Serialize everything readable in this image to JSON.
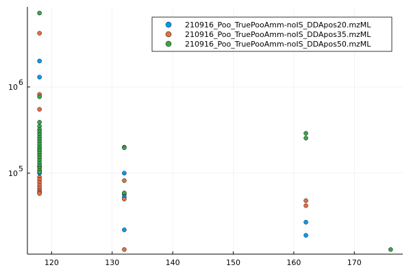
{
  "chart_data": {
    "type": "scatter",
    "title": "",
    "xlabel": "",
    "ylabel": "",
    "xlim": [
      116,
      178
    ],
    "ylim": [
      11500,
      8500000
    ],
    "y_scale": "log10",
    "grid": true,
    "legend_position": "top-right",
    "x_ticks": [
      120,
      130,
      140,
      150,
      160,
      170
    ],
    "x_tick_labels": [
      "120",
      "130",
      "140",
      "150",
      "160",
      "170"
    ],
    "y_ticks": [
      100000,
      1000000
    ],
    "y_tick_labels": [
      {
        "base": "10",
        "exp": "5"
      },
      {
        "base": "10",
        "exp": "6"
      }
    ],
    "series": [
      {
        "name": "210916_Poo_TruePooAmm-noIS_DDApos20.mzML",
        "color": "#009af9",
        "points": [
          [
            118,
            2000000
          ],
          [
            118,
            1300000
          ],
          [
            118,
            120000
          ],
          [
            118,
            100000
          ],
          [
            132,
            100000
          ],
          [
            132,
            57000
          ],
          [
            132,
            53000
          ],
          [
            132,
            22000
          ],
          [
            162,
            27000
          ],
          [
            162,
            19000
          ]
        ]
      },
      {
        "name": "210916_Poo_TruePooAmm-noIS_DDApos35.mzML",
        "color": "#e26f46",
        "points": [
          [
            118,
            4200000
          ],
          [
            118,
            820000
          ],
          [
            118,
            550000
          ],
          [
            118,
            90000
          ],
          [
            118,
            84000
          ],
          [
            118,
            78000
          ],
          [
            118,
            72000
          ],
          [
            118,
            67000
          ],
          [
            118,
            63000
          ],
          [
            118,
            60000
          ],
          [
            118,
            58000
          ],
          [
            132,
            82000
          ],
          [
            132,
            50000
          ],
          [
            132,
            13000
          ],
          [
            162,
            48000
          ],
          [
            162,
            42000
          ]
        ]
      },
      {
        "name": "210916_Poo_TruePooAmm-noIS_DDApos50.mzML",
        "color": "#3da44d",
        "points": [
          [
            118,
            7200000
          ],
          [
            118,
            770000
          ],
          [
            118,
            390000
          ],
          [
            118,
            350000
          ],
          [
            118,
            320000
          ],
          [
            118,
            300000
          ],
          [
            118,
            280000
          ],
          [
            118,
            260000
          ],
          [
            118,
            245000
          ],
          [
            118,
            230000
          ],
          [
            118,
            215000
          ],
          [
            118,
            200000
          ],
          [
            118,
            190000
          ],
          [
            118,
            180000
          ],
          [
            118,
            170000
          ],
          [
            118,
            160000
          ],
          [
            118,
            150000
          ],
          [
            118,
            140000
          ],
          [
            118,
            130000
          ],
          [
            118,
            122000
          ],
          [
            118,
            115000
          ],
          [
            118,
            108000
          ],
          [
            118,
            103000
          ],
          [
            132,
            200000
          ],
          [
            132,
            197000
          ],
          [
            132,
            59000
          ],
          [
            162,
            290000
          ],
          [
            162,
            255000
          ],
          [
            176,
            13000
          ]
        ]
      }
    ]
  }
}
